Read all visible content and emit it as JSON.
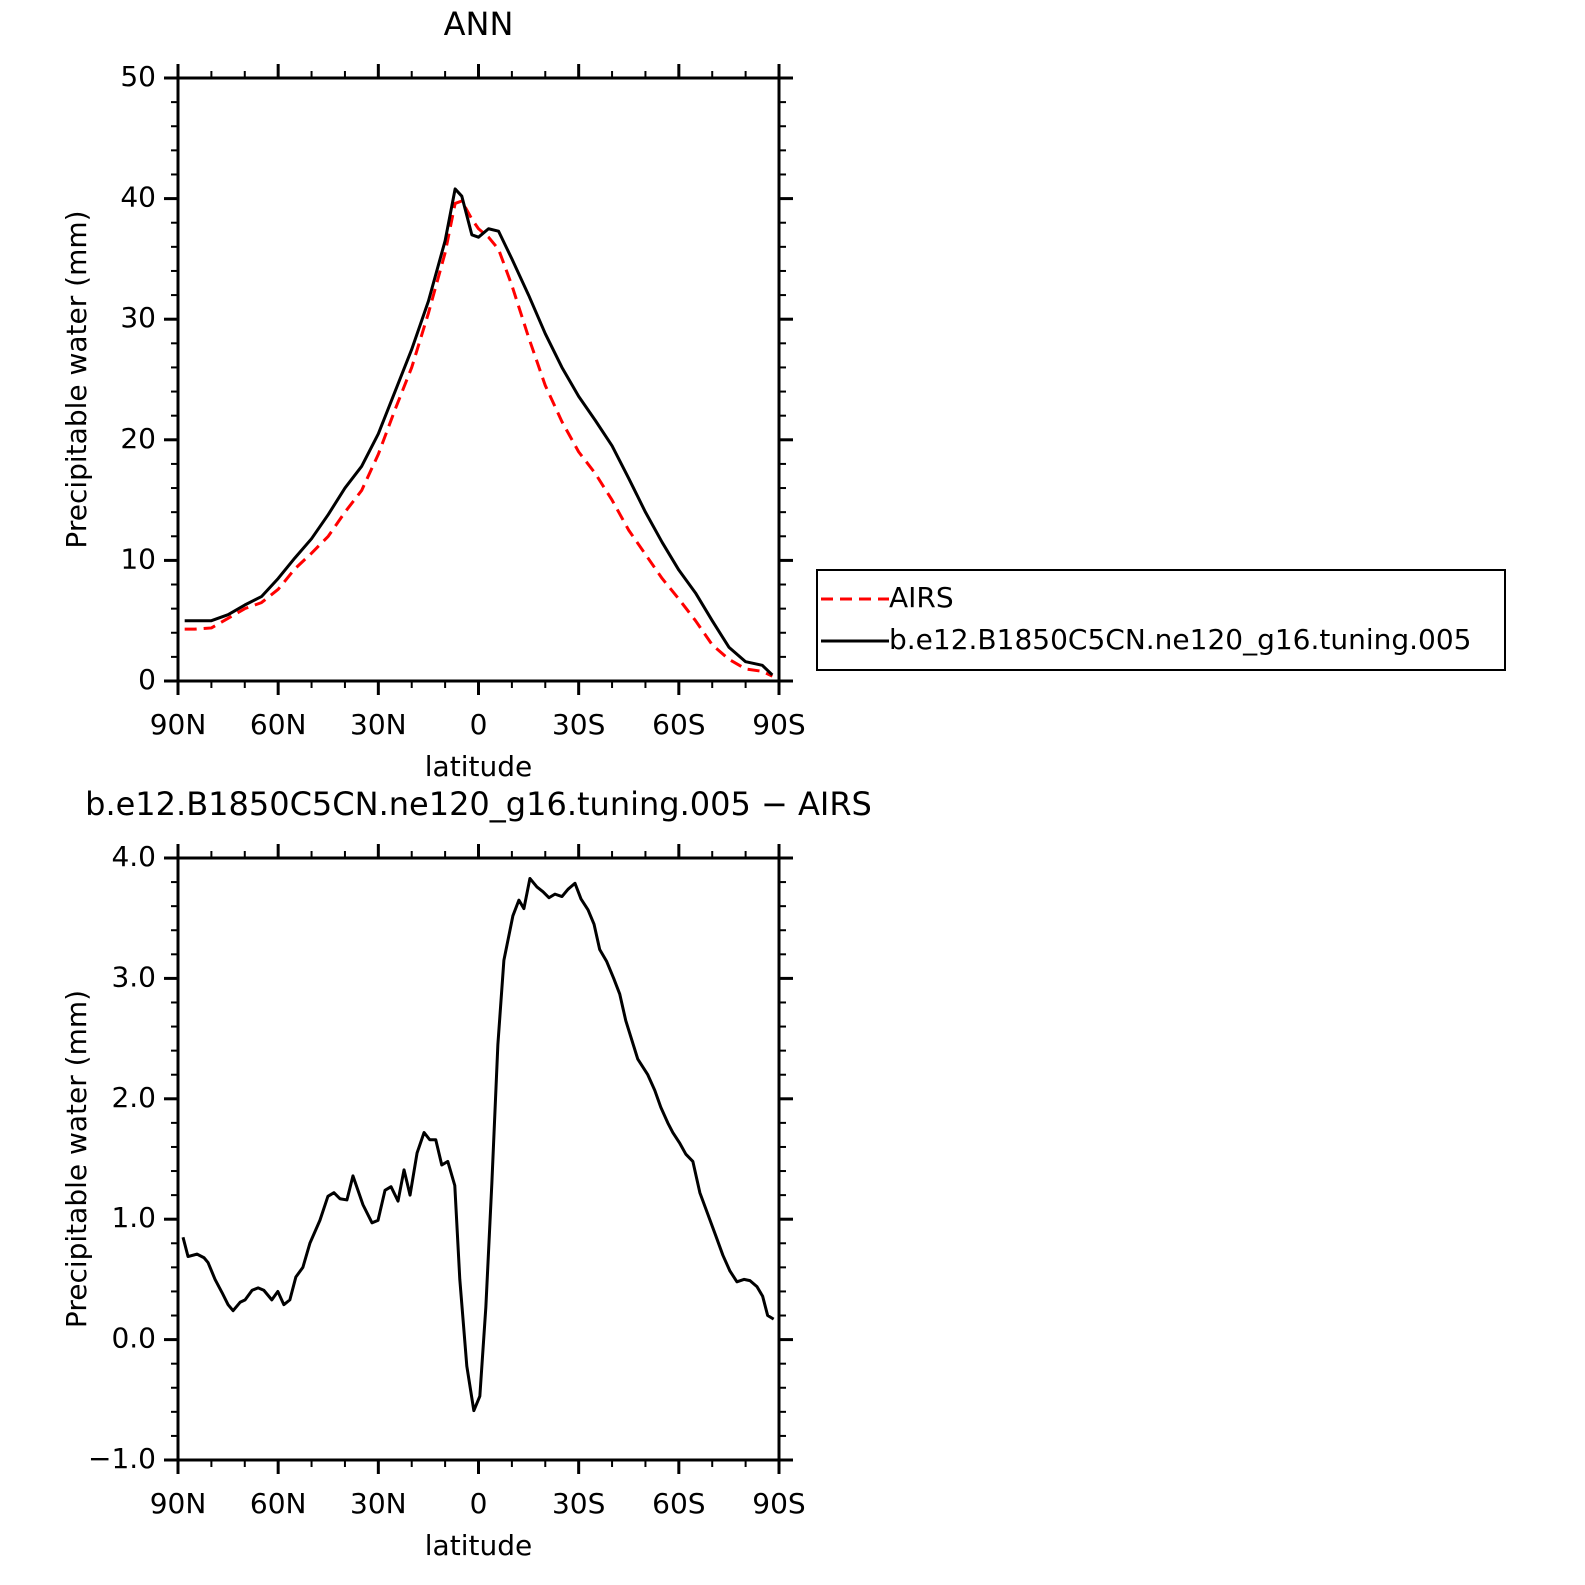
{
  "chart_data": [
    {
      "type": "line",
      "title": "ANN",
      "xlabel": "latitude",
      "ylabel": "Precipitable water (mm)",
      "x": [
        88,
        85,
        80,
        75,
        70,
        65,
        60,
        55,
        50,
        45,
        40,
        35,
        30,
        25,
        20,
        15,
        10,
        7,
        5,
        2,
        0,
        -3,
        -6,
        -10,
        -15,
        -20,
        -25,
        -30,
        -35,
        -40,
        -45,
        -50,
        -55,
        -60,
        -65,
        -70,
        -75,
        -80,
        -85,
        -88
      ],
      "series": [
        {
          "name": "AIRS",
          "color": "#ff0000",
          "style": "dashed",
          "values": [
            4.3,
            4.3,
            4.4,
            5.2,
            6.0,
            6.5,
            7.6,
            9.3,
            10.6,
            12.0,
            14.0,
            15.8,
            18.8,
            22.5,
            26.0,
            30.5,
            35.5,
            39.6,
            39.8,
            38.3,
            37.5,
            36.8,
            35.8,
            32.8,
            28.5,
            24.5,
            21.5,
            19.0,
            17.2,
            15.0,
            12.5,
            10.5,
            8.5,
            6.8,
            5.0,
            3.0,
            1.8,
            1.0,
            0.8,
            0.4
          ]
        },
        {
          "name": "b.e12.B1850C5CN.ne120_g16.tuning.005",
          "color": "#000000",
          "style": "solid",
          "values": [
            5.0,
            5.0,
            5.0,
            5.5,
            6.3,
            7.0,
            8.5,
            10.2,
            11.8,
            13.8,
            16.0,
            17.8,
            20.5,
            24.0,
            27.5,
            31.5,
            36.5,
            40.8,
            40.2,
            37.0,
            36.8,
            37.5,
            37.3,
            35.0,
            32.0,
            28.8,
            26.0,
            23.6,
            21.6,
            19.5,
            16.8,
            14.0,
            11.5,
            9.2,
            7.3,
            5.0,
            2.8,
            1.6,
            1.3,
            0.5
          ]
        }
      ],
      "xlim": [
        90,
        -90
      ],
      "xticks": [
        {
          "value": 90,
          "label": "90N"
        },
        {
          "value": 60,
          "label": "60N"
        },
        {
          "value": 30,
          "label": "30N"
        },
        0,
        {
          "value": -30,
          "label": "30S"
        },
        {
          "value": -60,
          "label": "60S"
        },
        {
          "value": -90,
          "label": "90S"
        }
      ],
      "xminorticks": [
        80,
        70,
        50,
        40,
        20,
        10,
        -10,
        -20,
        -40,
        -50,
        -70,
        -80
      ],
      "ylim": [
        0,
        50
      ],
      "yticks": [
        0,
        10,
        20,
        30,
        40,
        50
      ],
      "yminorticks": [
        2,
        4,
        6,
        8,
        12,
        14,
        16,
        18,
        22,
        24,
        26,
        28,
        32,
        34,
        36,
        38,
        42,
        44,
        46,
        48
      ],
      "legend": "right"
    },
    {
      "type": "line",
      "title": "b.e12.B1850C5CN.ne120_g16.tuning.005 − AIRS",
      "xlabel": "latitude",
      "ylabel": "Precipitable water (mm)",
      "x": [
        88.5,
        87.0,
        84.3,
        82.2,
        81.0,
        78.9,
        76.8,
        75.0,
        73.5,
        71.4,
        69.9,
        67.8,
        66.0,
        64.3,
        61.9,
        60.1,
        58.3,
        56.5,
        54.7,
        52.6,
        50.5,
        47.5,
        45.1,
        43.3,
        41.5,
        39.4,
        37.6,
        34.6,
        31.9,
        30.1,
        28.0,
        26.2,
        24.1,
        22.3,
        20.5,
        18.4,
        16.3,
        14.6,
        12.8,
        11.0,
        9.2,
        7.1,
        5.6,
        3.5,
        1.4,
        -0.4,
        -2.2,
        -4.0,
        -5.8,
        -7.6,
        -10.3,
        -12.1,
        -13.6,
        -15.4,
        -17.5,
        -19.3,
        -21.1,
        -22.9,
        -25.0,
        -26.8,
        -28.9,
        -30.7,
        -32.8,
        -34.6,
        -36.3,
        -38.4,
        -40.5,
        -42.3,
        -44.1,
        -47.7,
        -50.7,
        -52.8,
        -54.6,
        -56.7,
        -58.2,
        -60.3,
        -62.1,
        -64.2,
        -66.3,
        -68.7,
        -71.1,
        -73.2,
        -75.3,
        -77.4,
        -79.5,
        -81.3,
        -83.4,
        -85.1,
        -86.6,
        -88.4
      ],
      "color": "#000000",
      "values": [
        0.85,
        0.69,
        0.71,
        0.68,
        0.64,
        0.5,
        0.39,
        0.29,
        0.24,
        0.31,
        0.33,
        0.41,
        0.43,
        0.41,
        0.33,
        0.4,
        0.29,
        0.33,
        0.52,
        0.6,
        0.8,
        0.99,
        1.19,
        1.22,
        1.17,
        1.16,
        1.36,
        1.12,
        0.97,
        0.99,
        1.24,
        1.27,
        1.15,
        1.41,
        1.2,
        1.55,
        1.72,
        1.66,
        1.66,
        1.45,
        1.48,
        1.28,
        0.5,
        -0.22,
        -0.59,
        -0.47,
        0.27,
        1.3,
        2.45,
        3.15,
        3.52,
        3.65,
        3.58,
        3.83,
        3.76,
        3.72,
        3.67,
        3.7,
        3.68,
        3.74,
        3.79,
        3.66,
        3.57,
        3.45,
        3.24,
        3.14,
        3.0,
        2.87,
        2.65,
        2.33,
        2.2,
        2.07,
        1.93,
        1.8,
        1.72,
        1.63,
        1.54,
        1.48,
        1.22,
        1.04,
        0.86,
        0.7,
        0.57,
        0.48,
        0.5,
        0.49,
        0.44,
        0.36,
        0.2,
        0.17
      ],
      "xlim": [
        90,
        -90
      ],
      "xticks": [
        {
          "value": 90,
          "label": "90N"
        },
        {
          "value": 60,
          "label": "60N"
        },
        {
          "value": 30,
          "label": "30N"
        },
        0,
        {
          "value": -30,
          "label": "30S"
        },
        {
          "value": -60,
          "label": "60S"
        },
        {
          "value": -90,
          "label": "90S"
        }
      ],
      "xminorticks": [
        80,
        70,
        50,
        40,
        20,
        10,
        -10,
        -20,
        -40,
        -50,
        -70,
        -80
      ],
      "ylim": [
        -1,
        4
      ],
      "yticks": [
        {
          "value": -1,
          "label": "−1.0"
        },
        {
          "value": 0,
          "label": "0.0"
        },
        {
          "value": 1,
          "label": "1.0"
        },
        {
          "value": 2,
          "label": "2.0"
        },
        {
          "value": 3,
          "label": "3.0"
        },
        {
          "value": 4,
          "label": "4.0"
        }
      ],
      "yminorticks": [
        -0.8,
        -0.6,
        -0.4,
        -0.2,
        0.2,
        0.4,
        0.6,
        0.8,
        1.2,
        1.4,
        1.6,
        1.8,
        2.2,
        2.4,
        2.6,
        2.8,
        3.2,
        3.4,
        3.6,
        3.8
      ]
    }
  ]
}
